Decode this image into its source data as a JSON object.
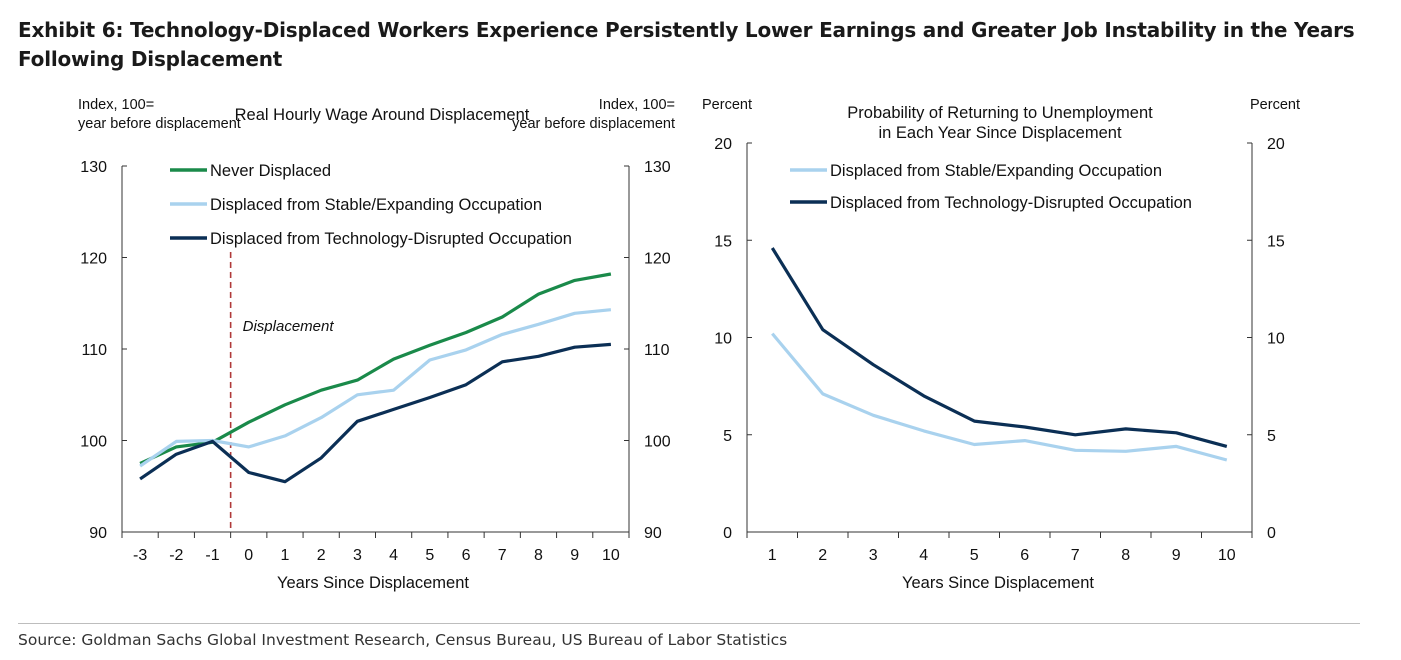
{
  "title": "Exhibit 6: Technology-Displaced Workers Experience Persistently Lower Earnings and Greater Job Instability in the Years Following Displacement",
  "source": "Source: Goldman Sachs Global Investment Research, Census Bureau, US Bureau of Labor Statistics",
  "colors": {
    "green": "#1a8a4a",
    "light_blue": "#a9d2ee",
    "dark_navy": "#0b2f55",
    "marker_red": "#b03a3a"
  },
  "chart_data": [
    {
      "type": "line",
      "title": "Real Hourly Wage Around Displacement",
      "xlabel": "Years Since Displacement",
      "ylabel_left": "Index, 100= year before displacement",
      "ylabel_right": "Index, 100= year before displacement",
      "x": [
        -3,
        -2,
        -1,
        0,
        1,
        2,
        3,
        4,
        5,
        6,
        7,
        8,
        9,
        10
      ],
      "xlim": [
        -3.5,
        10.5
      ],
      "ylim": [
        90,
        130
      ],
      "yticks": [
        90,
        100,
        110,
        120,
        130
      ],
      "legend_position": "top-left",
      "series": [
        {
          "name": "Never Displaced",
          "color": "#1a8a4a",
          "values": [
            97.5,
            99.3,
            99.8,
            102.0,
            103.9,
            105.5,
            106.6,
            108.9,
            110.4,
            111.8,
            113.5,
            116.0,
            117.5,
            118.2
          ]
        },
        {
          "name": "Displaced from Stable/Expanding Occupation",
          "color": "#a9d2ee",
          "values": [
            97.2,
            99.9,
            100.0,
            99.3,
            100.5,
            102.5,
            105.0,
            105.5,
            108.8,
            109.9,
            111.6,
            112.7,
            113.9,
            114.3
          ]
        },
        {
          "name": "Displaced from Technology-Disrupted Occupation",
          "color": "#0b2f55",
          "values": [
            95.8,
            98.5,
            99.9,
            96.5,
            95.5,
            98.1,
            102.1,
            103.4,
            104.7,
            106.1,
            108.6,
            109.2,
            110.2,
            110.5
          ]
        }
      ],
      "annotations": [
        {
          "label": "Displacement",
          "x": -0.5
        }
      ]
    },
    {
      "type": "line",
      "title": "Probability of Returning to Unemployment in Each Year Since Displacement",
      "xlabel": "Years Since Displacement",
      "ylabel_left": "Percent",
      "ylabel_right": "Percent",
      "x": [
        1,
        2,
        3,
        4,
        5,
        6,
        7,
        8,
        9,
        10
      ],
      "xlim": [
        0.5,
        10.5
      ],
      "ylim": [
        0,
        20
      ],
      "yticks": [
        0,
        5,
        10,
        15,
        20
      ],
      "legend_position": "top-left",
      "series": [
        {
          "name": "Displaced from Stable/Expanding Occupation",
          "color": "#a9d2ee",
          "values": [
            10.2,
            7.1,
            6.0,
            5.2,
            4.5,
            4.7,
            4.2,
            4.15,
            4.4,
            3.7
          ]
        },
        {
          "name": "Displaced from Technology-Disrupted Occupation",
          "color": "#0b2f55",
          "values": [
            14.6,
            10.4,
            8.6,
            7.0,
            5.7,
            5.4,
            5.0,
            5.3,
            5.1,
            4.4
          ]
        }
      ]
    }
  ]
}
